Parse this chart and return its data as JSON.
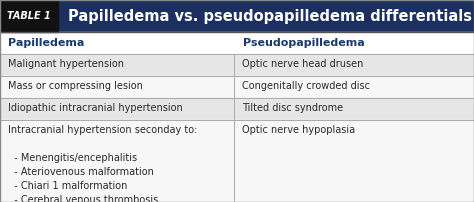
{
  "title_tag": "TABLE 1",
  "title_tag_bg": "#111111",
  "title_bg": "#1c3060",
  "title_text": "Papilledema vs. pseudopapilledema differentials",
  "title_text_color": "#ffffff",
  "header_text_color": "#1a3a6c",
  "header_bg": "#ffffff",
  "col1_header": "Papilledema",
  "col2_header": "Pseudopapilledema",
  "col_split": 0.495,
  "rows": [
    {
      "col1": "Malignant hypertension",
      "col2": "Optic nerve head drusen",
      "shaded": true
    },
    {
      "col1": "Mass or compressing lesion",
      "col2": "Congenitally crowded disc",
      "shaded": false
    },
    {
      "col1": "Idiopathic intracranial hypertension",
      "col2": "Tilted disc syndrome",
      "shaded": true
    },
    {
      "col1": "Intracranial hypertension seconday to:\n\n  - Menengitis/encephalitis\n  - Ateriovenous malformation\n  - Chiari 1 malformation\n  - Cerebral venous thrombosis",
      "col2": "Optic nerve hypoplasia",
      "shaded": false
    }
  ],
  "shaded_color": "#e6e6e6",
  "unshaded_color": "#f7f7f7",
  "text_color": "#2a2a2a",
  "border_color": "#aaaaaa",
  "font_size_tag": 7.0,
  "font_size_title": 10.5,
  "font_size_header": 8.0,
  "font_size_body": 7.0
}
